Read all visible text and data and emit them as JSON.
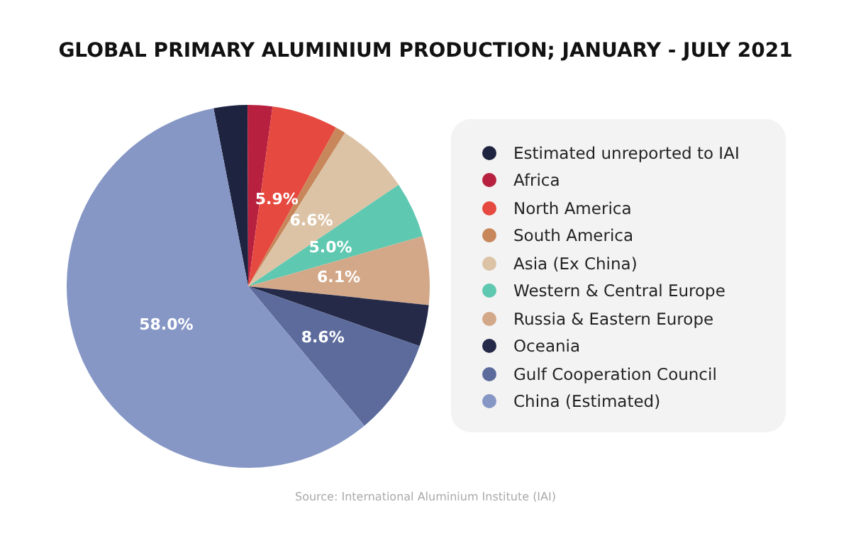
{
  "chart_data": {
    "type": "pie",
    "title": "GLOBAL PRIMARY ALUMINIUM PRODUCTION; JANUARY - JULY 2021",
    "categories": [
      "Estimated unreported to IAI",
      "Africa",
      "North America",
      "South America",
      "Asia (Ex China)",
      "Western & Central Europe",
      "Russia & Eastern Europe",
      "Oceania",
      "Gulf Cooperation Council",
      "China (Estimated)"
    ],
    "values": [
      3.0,
      2.2,
      5.9,
      0.9,
      6.6,
      5.0,
      6.1,
      3.7,
      8.6,
      58.0
    ],
    "value_labels": [
      null,
      null,
      "5.9%",
      null,
      "6.6%",
      "5.0%",
      "6.1%",
      null,
      "8.6%",
      "58.0%"
    ],
    "colors": [
      "#1e2340",
      "#b8203f",
      "#e6493f",
      "#c8875a",
      "#dcc3a6",
      "#5fc8b0",
      "#d3a888",
      "#242a48",
      "#5c6b9c",
      "#8697c6"
    ],
    "legend": "right",
    "annotations": [
      "Source: International Aluminium Institute (IAI)"
    ]
  }
}
